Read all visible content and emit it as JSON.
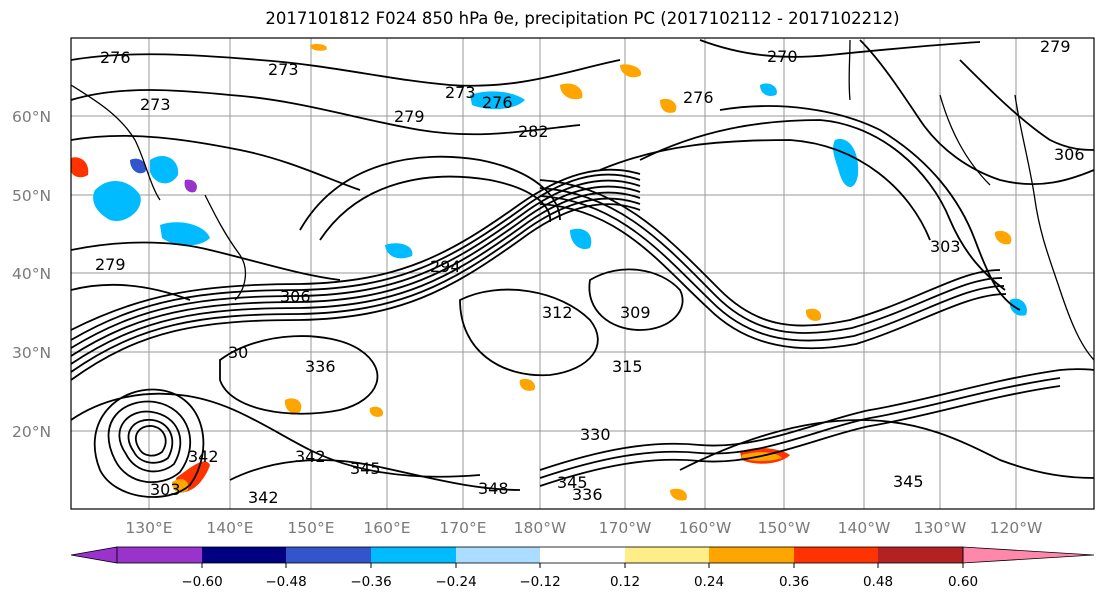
{
  "title": "2017101812 F024 850 hPa θe, precipitation PC (2017102112 - 2017102212)",
  "map": {
    "lat_ticks": [
      "60°N",
      "50°N",
      "40°N",
      "30°N",
      "20°N"
    ],
    "lon_ticks": [
      "130°E",
      "140°E",
      "150°E",
      "160°E",
      "170°E",
      "180°W",
      "170°W",
      "160°W",
      "150°W",
      "140°W",
      "130°W",
      "120°W"
    ],
    "contour_labels": [
      "276",
      "273",
      "273",
      "276",
      "282",
      "279",
      "270",
      "276",
      "279",
      "306",
      "303",
      "294",
      "306",
      "30",
      "312",
      "309",
      "330",
      "336",
      "315",
      "342",
      "345",
      "342",
      "348",
      "336",
      "345",
      "345",
      "303",
      "279",
      "273",
      "342"
    ]
  },
  "colorbar": {
    "colors": [
      "#9933cc",
      "#000080",
      "#3355cc",
      "#00bbff",
      "#aaddff",
      "#ffffff",
      "#ffee88",
      "#ffa500",
      "#ff3300",
      "#b22222",
      "#ff88aa"
    ],
    "tick_labels": [
      "−0.60",
      "−0.48",
      "−0.36",
      "−0.24",
      "−0.12",
      "0.12",
      "0.24",
      "0.36",
      "0.48",
      "0.60"
    ]
  }
}
